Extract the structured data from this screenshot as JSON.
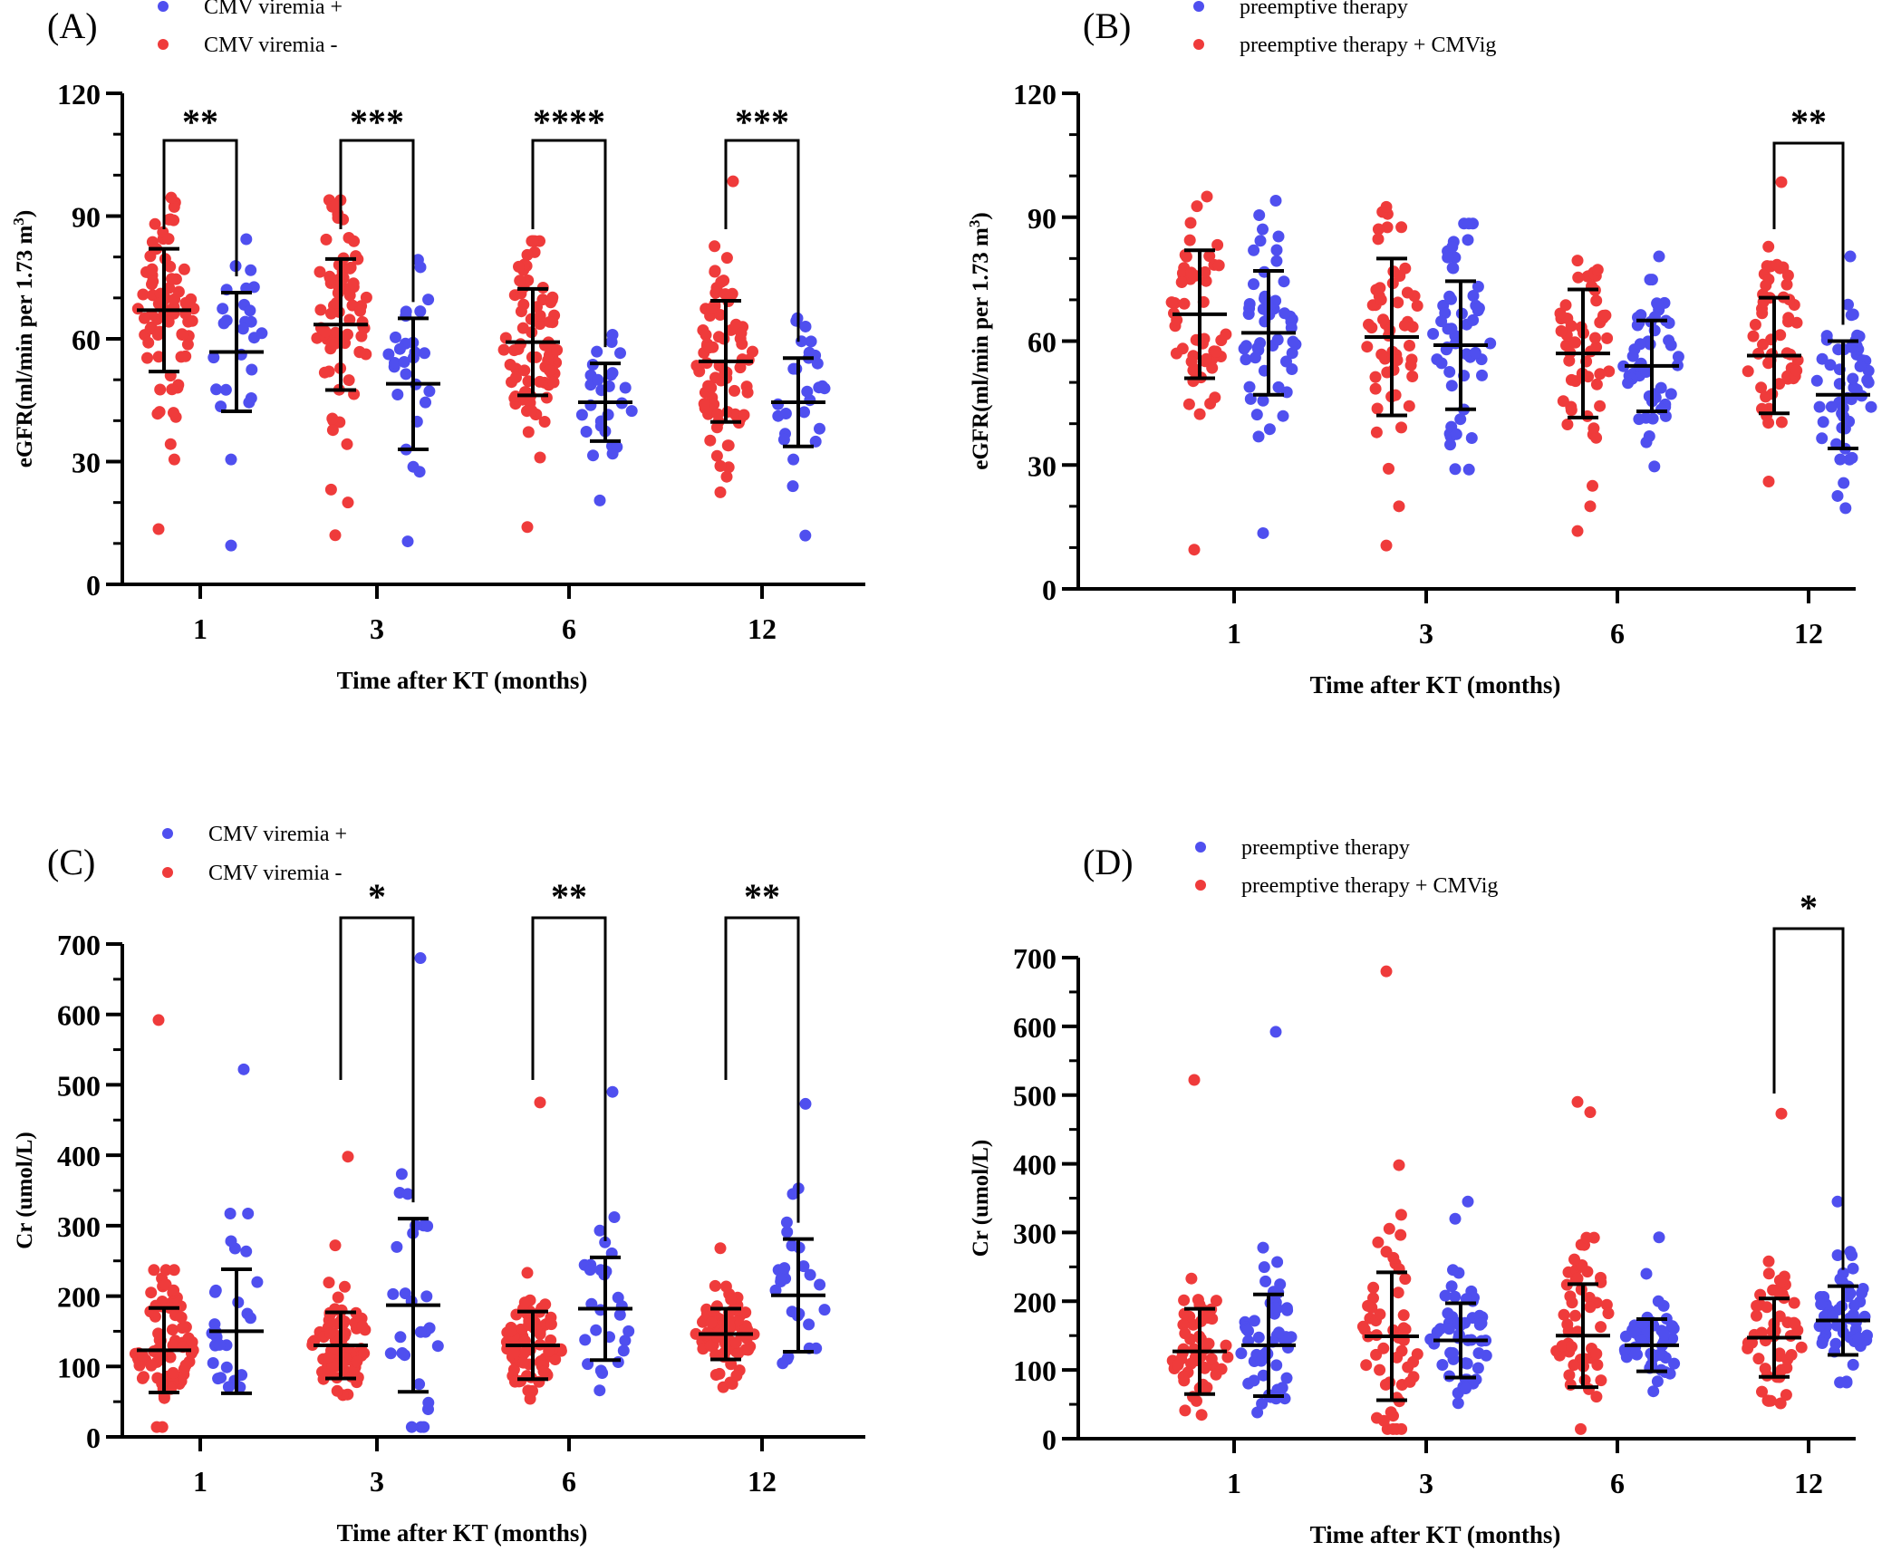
{
  "chart_data": [
    {
      "panel": "A",
      "panel_label": "(A)",
      "type": "scatter",
      "ylabel": "eGFR(ml/min per 1.73 m",
      "ylabel_sup": "3",
      "ylabel_close": ")",
      "xlabel": "Time after KT (months)",
      "ylim": [
        0,
        120
      ],
      "yticks": [
        0,
        30,
        60,
        90,
        120
      ],
      "categories": [
        "1",
        "3",
        "6",
        "12"
      ],
      "legend_position": "top",
      "series": [
        {
          "name": "CMV viremia +",
          "color": "#4f4fef",
          "n": [
            25,
            25,
            25,
            25
          ],
          "mean": [
            56.8,
            49.0,
            44.5,
            44.5
          ],
          "sd": [
            14.5,
            16.0,
            9.5,
            10.8
          ],
          "outliers": [
            [
              9.5
            ],
            [
              10.5,
              77.5
            ],
            [
              20.5,
              61.0
            ],
            [
              24.0,
              63.0
            ]
          ]
        },
        {
          "name": "CMV viremia -",
          "color": "#ef3b3b",
          "n": [
            75,
            75,
            75,
            75
          ],
          "mean": [
            67.0,
            63.5,
            59.2,
            54.5
          ],
          "sd": [
            15.0,
            16.0,
            13.0,
            14.8
          ],
          "outliers": [
            [
              13.5,
              94.5
            ],
            [
              12.0,
              20.0,
              92.5
            ],
            [
              14.0,
              31.0,
              80.5
            ],
            [
              22.5,
              98.5
            ]
          ]
        }
      ],
      "comparisons": [
        {
          "category": "1",
          "label": "**"
        },
        {
          "category": "3",
          "label": "***"
        },
        {
          "category": "6",
          "label": "****"
        },
        {
          "category": "12",
          "label": "***"
        }
      ]
    },
    {
      "panel": "B",
      "panel_label": "(B)",
      "type": "scatter",
      "ylabel": "eGFR(ml/min per 1.73 m",
      "ylabel_sup": "3",
      "ylabel_close": ")",
      "xlabel": "Time after KT (months)",
      "ylim": [
        0,
        120
      ],
      "yticks": [
        0,
        30,
        60,
        90,
        120
      ],
      "categories": [
        "1",
        "3",
        "6",
        "12"
      ],
      "legend_position": "top",
      "series": [
        {
          "name": "preemptive therapy",
          "color": "#4f4fef",
          "n": [
            50,
            50,
            50,
            50
          ],
          "mean": [
            62.0,
            59.0,
            54.0,
            47.0
          ],
          "sd": [
            15.0,
            15.5,
            11.0,
            13.0
          ],
          "outliers": [
            [
              13.5,
              94.0
            ],
            [
              29.0,
              84.5
            ],
            [
              35.5,
              80.5
            ],
            [
              22.5,
              80.5
            ]
          ]
        },
        {
          "name": "preemptive therapy + CMVig",
          "color": "#ef3b3b",
          "n": [
            50,
            50,
            50,
            50
          ],
          "mean": [
            66.5,
            61.0,
            57.0,
            56.5
          ],
          "sd": [
            15.5,
            19.0,
            15.5,
            14.0
          ],
          "outliers": [
            [
              9.5,
              95.0
            ],
            [
              10.5,
              20.0,
              92.5
            ],
            [
              14.0,
              20.0,
              79.5
            ],
            [
              26.0,
              98.5
            ]
          ]
        }
      ],
      "comparisons": [
        {
          "category": "12",
          "label": "**"
        }
      ]
    },
    {
      "panel": "C",
      "panel_label": "(C)",
      "type": "scatter",
      "ylabel": "Cr (umol/L)",
      "ylabel_sup": "",
      "ylabel_close": "",
      "xlabel": "Time after KT (months)",
      "ylim": [
        0,
        700
      ],
      "yticks": [
        0,
        100,
        200,
        300,
        400,
        500,
        600,
        700
      ],
      "categories": [
        "1",
        "3",
        "6",
        "12"
      ],
      "legend_position": "top",
      "series": [
        {
          "name": "CMV viremia +",
          "color": "#4f4fef",
          "n": [
            25,
            25,
            25,
            25
          ],
          "mean": [
            150,
            187,
            182,
            201
          ],
          "sd": [
            88,
            123,
            73,
            80
          ],
          "outliers": [
            [
              278,
              522
            ],
            [
              345,
              680
            ],
            [
              293,
              490
            ],
            [
              345,
              473
            ]
          ]
        },
        {
          "name": "CMV viremia -",
          "color": "#ef3b3b",
          "n": [
            75,
            75,
            75,
            75
          ],
          "mean": [
            123,
            130,
            130,
            146
          ],
          "sd": [
            60,
            47,
            48,
            36
          ],
          "outliers": [
            [
              592
            ],
            [
              272,
              398
            ],
            [
              233,
              475
            ],
            [
              268
            ]
          ]
        }
      ],
      "comparisons": [
        {
          "category": "3",
          "label": "*"
        },
        {
          "category": "6",
          "label": "**"
        },
        {
          "category": "12",
          "label": "**"
        }
      ]
    },
    {
      "panel": "D",
      "panel_label": "(D)",
      "type": "scatter",
      "ylabel": "Cr (umol/L)",
      "ylabel_sup": "",
      "ylabel_close": "",
      "xlabel": "Time after KT (months)",
      "ylim": [
        0,
        700
      ],
      "yticks": [
        0,
        100,
        200,
        300,
        400,
        500,
        600,
        700
      ],
      "categories": [
        "1",
        "3",
        "6",
        "12"
      ],
      "legend_position": "top",
      "series": [
        {
          "name": "preemptive therapy",
          "color": "#4f4fef",
          "n": [
            50,
            50,
            50,
            50
          ],
          "mean": [
            136,
            143,
            136,
            172
          ],
          "sd": [
            74,
            54,
            38,
            50
          ],
          "outliers": [
            [
              278,
              592
            ],
            [
              320,
              345
            ],
            [
              240,
              293
            ],
            [
              345,
              272
            ]
          ]
        },
        {
          "name": "preemptive therapy + CMVig",
          "color": "#ef3b3b",
          "n": [
            50,
            50,
            50,
            50
          ],
          "mean": [
            127,
            149,
            150,
            147
          ],
          "sd": [
            62,
            93,
            75,
            57
          ],
          "outliers": [
            [
              522
            ],
            [
              272,
              398,
              680
            ],
            [
              233,
              475,
              490
            ],
            [
              258,
              473
            ]
          ]
        }
      ],
      "comparisons": [
        {
          "category": "12",
          "label": "*"
        }
      ]
    }
  ]
}
